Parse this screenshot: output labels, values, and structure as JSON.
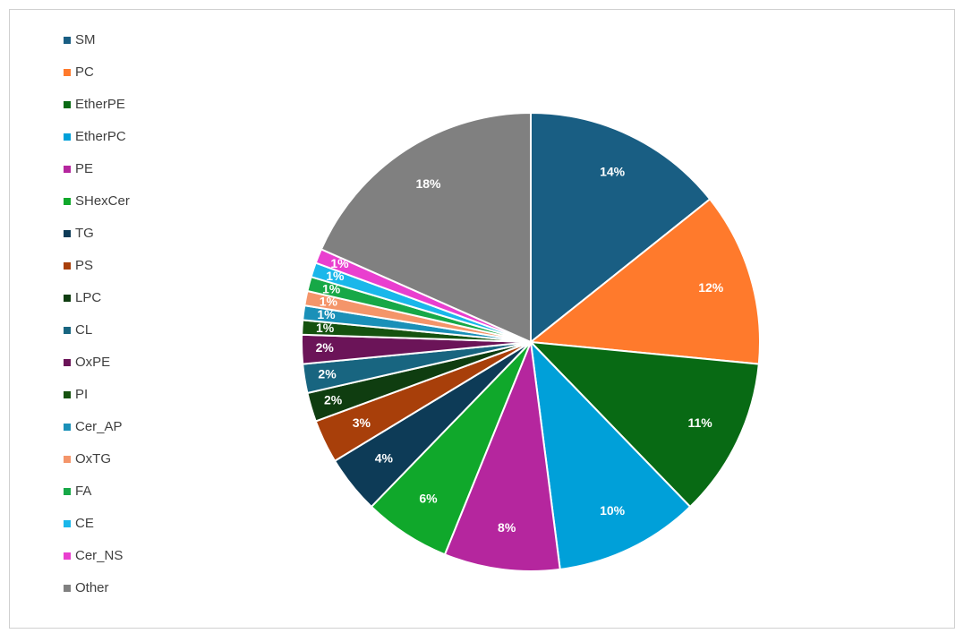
{
  "chart_data": {
    "type": "pie",
    "categories": [
      "SM",
      "PC",
      "EtherPE",
      "EtherPC",
      "PE",
      "SHexCer",
      "TG",
      "PS",
      "LPC",
      "CL",
      "OxPE",
      "PI",
      "Cer_AP",
      "OxTG",
      "FA",
      "CE",
      "Cer_NS",
      "Other"
    ],
    "values": [
      14,
      12,
      11,
      10,
      8,
      6,
      4,
      3,
      2,
      2,
      2,
      1,
      1,
      1,
      1,
      1,
      1,
      18
    ],
    "value_labels": [
      "14%",
      "12%",
      "11%",
      "10%",
      "8%",
      "6%",
      "4%",
      "3%",
      "2%",
      "2%",
      "2%",
      "1%",
      "1%",
      "1%",
      "1%",
      "1%",
      "1%",
      "18%"
    ],
    "colors": [
      "#195e83",
      "#ff7a2c",
      "#086a14",
      "#00a0d9",
      "#b5269e",
      "#10a82b",
      "#0d3b57",
      "#a83f0a",
      "#0f3d10",
      "#186580",
      "#6b1458",
      "#15520f",
      "#1a90b8",
      "#f4956a",
      "#17a847",
      "#1ab7ea",
      "#e93fcf",
      "#808080"
    ],
    "legend": "left"
  }
}
